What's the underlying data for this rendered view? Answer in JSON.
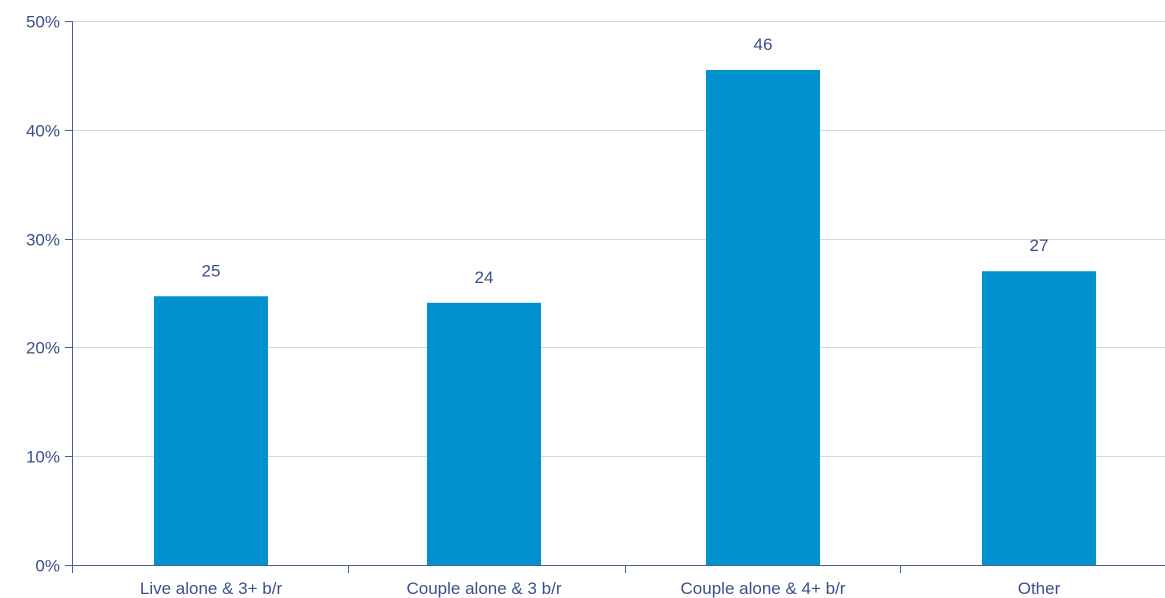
{
  "chart_data": {
    "type": "bar",
    "categories": [
      "Live alone & 3+ b/r",
      "Couple alone & 3 b/r",
      "Couple alone & 4+ b/r",
      "Other"
    ],
    "values": [
      24.7,
      24.1,
      45.5,
      27.0
    ],
    "data_labels": [
      "25",
      "24",
      "46",
      "27"
    ],
    "ylim": [
      0,
      50
    ],
    "yticks": [
      0,
      10,
      20,
      30,
      40,
      50
    ],
    "ytick_labels": [
      "0%",
      "10%",
      "20%",
      "30%",
      "40%",
      "50%"
    ],
    "grid": true,
    "colors": {
      "bar": "#0092ce",
      "axis": "#4a5d95",
      "grid": "#d9d9d9",
      "text": "#3b4f8a"
    }
  }
}
